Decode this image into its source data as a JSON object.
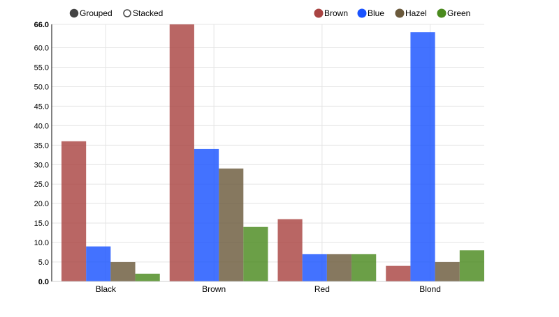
{
  "controls": {
    "grouped_label": "Grouped",
    "stacked_label": "Stacked",
    "selected": "Grouped"
  },
  "chart_data": {
    "type": "bar",
    "categories": [
      "Black",
      "Brown",
      "Red",
      "Blond"
    ],
    "series": [
      {
        "name": "Brown",
        "color": "#a94442",
        "values": [
          36,
          66,
          16,
          4
        ]
      },
      {
        "name": "Blue",
        "color": "#1a53ff",
        "values": [
          9,
          34,
          7,
          64
        ]
      },
      {
        "name": "Hazel",
        "color": "#6b5a3c",
        "values": [
          5,
          29,
          7,
          5
        ]
      },
      {
        "name": "Green",
        "color": "#4a8a1e",
        "values": [
          2,
          14,
          7,
          8
        ]
      }
    ],
    "yticks": [
      "0.0",
      "5.0",
      "10.0",
      "15.0",
      "20.0",
      "25.0",
      "30.0",
      "35.0",
      "40.0",
      "45.0",
      "50.0",
      "55.0",
      "60.0",
      "66.0"
    ],
    "ylim": [
      0,
      66
    ],
    "grid": true,
    "legend_position": "top-right",
    "title": "",
    "xlabel": "",
    "ylabel": ""
  }
}
